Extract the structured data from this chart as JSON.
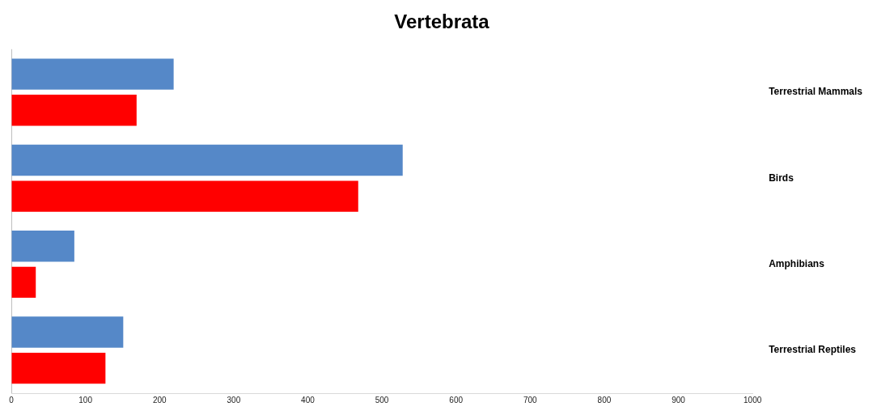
{
  "chart_data": {
    "type": "bar",
    "title": "Vertebrata",
    "orientation": "horizontal",
    "categories": [
      "Terrestrial Mammals",
      "Birds",
      "Amphibians",
      "Terrestrial Reptiles"
    ],
    "series": [
      {
        "color": "#5588c8",
        "values": [
          219,
          528,
          85,
          151
        ]
      },
      {
        "color": "#ff0000",
        "values": [
          169,
          468,
          33,
          127
        ]
      }
    ],
    "xlim": [
      0,
      1000
    ],
    "xticks": [
      0,
      100,
      200,
      300,
      400,
      500,
      600,
      700,
      800,
      900,
      1000
    ],
    "grid": false,
    "legend": false
  }
}
